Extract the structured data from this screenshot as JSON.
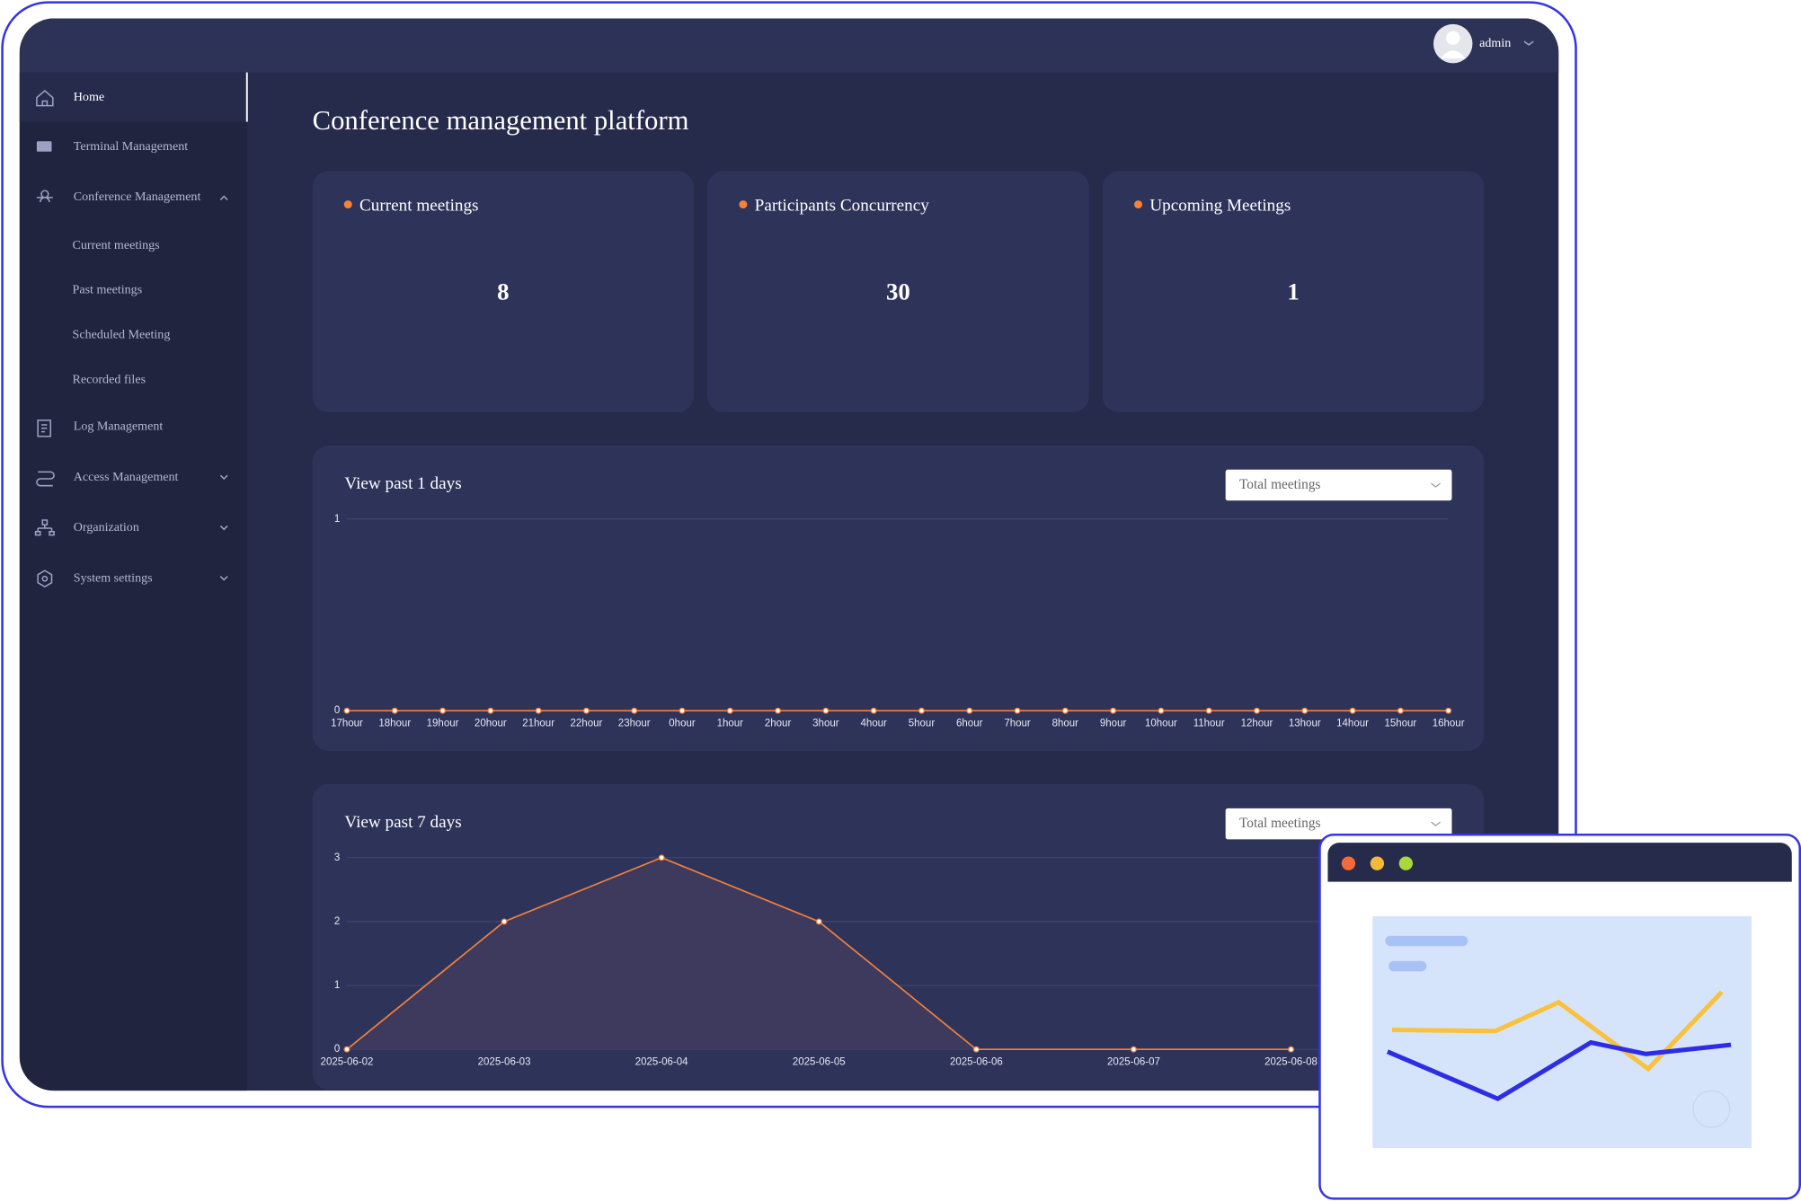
{
  "header": {
    "user": "admin"
  },
  "sidebar": {
    "items": [
      {
        "label": "Home"
      },
      {
        "label": "Terminal Management"
      },
      {
        "label": "Conference Management",
        "children": [
          "Current meetings",
          "Past meetings",
          "Scheduled Meeting",
          "Recorded files"
        ]
      },
      {
        "label": "Log Management"
      },
      {
        "label": "Access Management"
      },
      {
        "label": "Organization"
      },
      {
        "label": "System settings"
      }
    ]
  },
  "title": "Conference management platform",
  "cards": [
    {
      "label": "Current meetings",
      "value": 8
    },
    {
      "label": "Participants Concurrency",
      "value": 30
    },
    {
      "label": "Upcoming Meetings",
      "value": 1
    }
  ],
  "chart_data": [
    {
      "type": "line",
      "title": "View past 1 days",
      "dropdown": "Total meetings",
      "categories": [
        "17hour",
        "18hour",
        "19hour",
        "20hour",
        "21hour",
        "22hour",
        "23hour",
        "0hour",
        "1hour",
        "2hour",
        "3hour",
        "4hour",
        "5hour",
        "6hour",
        "7hour",
        "8hour",
        "9hour",
        "10hour",
        "11hour",
        "12hour",
        "13hour",
        "14hour",
        "15hour",
        "16hour"
      ],
      "values": [
        0,
        0,
        0,
        0,
        0,
        0,
        0,
        0,
        0,
        0,
        0,
        0,
        0,
        0,
        0,
        0,
        0,
        0,
        0,
        0,
        0,
        0,
        0,
        0
      ],
      "color": "#f5823c",
      "ylim": [
        0,
        1
      ],
      "yticks": [
        0,
        1
      ],
      "grid": true,
      "area": false
    },
    {
      "type": "line",
      "title": "View past 7 days",
      "dropdown": "Total meetings",
      "categories": [
        "2025-06-02",
        "2025-06-03",
        "2025-06-04",
        "2025-06-05",
        "2025-06-06",
        "2025-06-07",
        "2025-06-08"
      ],
      "values": [
        0,
        2,
        3,
        2,
        0,
        0,
        0
      ],
      "color": "#f5823c",
      "ylim": [
        0,
        3
      ],
      "yticks": [
        0,
        1,
        2,
        3
      ],
      "grid": true,
      "area": true
    }
  ]
}
